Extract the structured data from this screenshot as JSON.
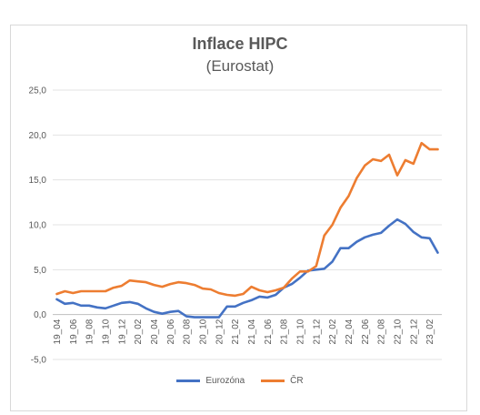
{
  "chart_data": {
    "type": "line",
    "title": "Inflace HIPC",
    "subtitle": "(Eurostat)",
    "xlabel": "",
    "ylabel": "",
    "ylim": [
      -5,
      25
    ],
    "yticks": [
      -5,
      0,
      5,
      10,
      15,
      20,
      25
    ],
    "ytick_labels": [
      "-5,0",
      "0,0",
      "5,0",
      "10,0",
      "15,0",
      "20,0",
      "25,0"
    ],
    "grid": true,
    "legend_position": "bottom",
    "categories": [
      "19_04",
      "19_05",
      "19_06",
      "19_07",
      "19_08",
      "19_09",
      "19_10",
      "19_11",
      "19_12",
      "20_01",
      "20_02",
      "20_03",
      "20_04",
      "20_05",
      "20_06",
      "20_07",
      "20_08",
      "20_09",
      "20_10",
      "20_11",
      "20_12",
      "21_01",
      "21_02",
      "21_03",
      "21_04",
      "21_05",
      "21_06",
      "21_07",
      "21_08",
      "21_09",
      "21_10",
      "21_11",
      "21_12",
      "22_01",
      "22_02",
      "22_03",
      "22_04",
      "22_05",
      "22_06",
      "22_07",
      "22_08",
      "22_09",
      "22_10",
      "22_11",
      "22_12",
      "23_01",
      "23_02",
      "23_03"
    ],
    "tick_labels_shown": [
      "19_04",
      "19_06",
      "19_08",
      "19_10",
      "19_12",
      "20_02",
      "20_04",
      "20_06",
      "20_08",
      "20_10",
      "20_12",
      "21_02",
      "21_04",
      "21_06",
      "21_08",
      "21_10",
      "21_12",
      "22_02",
      "22_04",
      "22_06",
      "22_08",
      "22_10",
      "22_12",
      "23_02"
    ],
    "series": [
      {
        "name": "Eurozóna",
        "color": "#4472c4",
        "values": [
          1.7,
          1.2,
          1.3,
          1.0,
          1.0,
          0.8,
          0.7,
          1.0,
          1.3,
          1.4,
          1.2,
          0.7,
          0.3,
          0.1,
          0.3,
          0.4,
          -0.2,
          -0.3,
          -0.3,
          -0.3,
          -0.3,
          0.9,
          0.9,
          1.3,
          1.6,
          2.0,
          1.9,
          2.2,
          3.0,
          3.4,
          4.1,
          4.9,
          5.0,
          5.1,
          5.9,
          7.4,
          7.4,
          8.1,
          8.6,
          8.9,
          9.1,
          9.9,
          10.6,
          10.1,
          9.2,
          8.6,
          8.5,
          6.9
        ]
      },
      {
        "name": "ČR",
        "color": "#ed7d31",
        "values": [
          2.3,
          2.6,
          2.4,
          2.6,
          2.6,
          2.6,
          2.6,
          3.0,
          3.2,
          3.8,
          3.7,
          3.6,
          3.3,
          3.1,
          3.4,
          3.6,
          3.5,
          3.3,
          2.9,
          2.8,
          2.4,
          2.2,
          2.1,
          2.3,
          3.1,
          2.7,
          2.5,
          2.7,
          3.0,
          4.0,
          4.8,
          4.8,
          5.4,
          8.8,
          10.0,
          11.9,
          13.2,
          15.2,
          16.6,
          17.3,
          17.1,
          17.8,
          15.5,
          17.2,
          16.8,
          19.1,
          18.4,
          18.4
        ]
      }
    ]
  }
}
